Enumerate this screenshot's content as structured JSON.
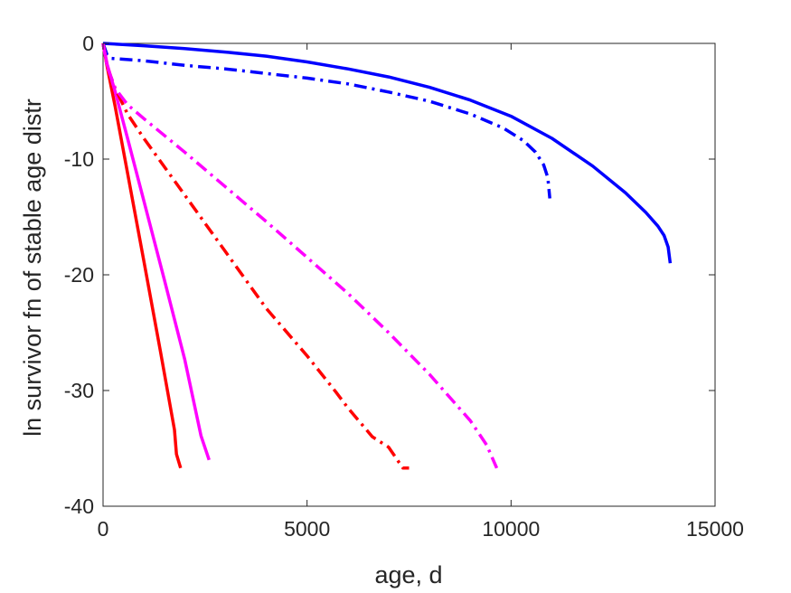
{
  "chart_data": {
    "type": "line",
    "title": "",
    "xlabel": "age, d",
    "ylabel": "ln survivor fn of stable age distr",
    "xlim": [
      0,
      15000
    ],
    "ylim": [
      -40,
      0
    ],
    "xticks": [
      0,
      5000,
      10000,
      15000
    ],
    "yticks": [
      0,
      -10,
      -20,
      -30,
      -40
    ],
    "xtick_labels": [
      "0",
      "5000",
      "10000",
      "15000"
    ],
    "ytick_labels": [
      "0",
      "-10",
      "-20",
      "-30",
      "-40"
    ],
    "grid": false,
    "legend": "none",
    "series": [
      {
        "color": "#0000ff",
        "style": "solid",
        "x": [
          0,
          1000,
          2000,
          3000,
          4000,
          5000,
          6000,
          7000,
          8000,
          9000,
          10000,
          11000,
          12000,
          12800,
          13300,
          13600,
          13750,
          13850,
          13900
        ],
        "y": [
          0,
          -0.2,
          -0.45,
          -0.75,
          -1.1,
          -1.6,
          -2.2,
          -2.9,
          -3.8,
          -4.9,
          -6.3,
          -8.2,
          -10.6,
          -12.9,
          -14.6,
          -15.8,
          -16.6,
          -17.6,
          -19.0
        ]
      },
      {
        "color": "#0000ff",
        "style": "dashdot",
        "x": [
          0,
          100,
          200,
          1000,
          2000,
          3000,
          4000,
          5000,
          6000,
          7000,
          8000,
          9000,
          9800,
          10300,
          10600,
          10800,
          10900,
          10950
        ],
        "y": [
          0,
          -1.0,
          -1.3,
          -1.5,
          -1.9,
          -2.2,
          -2.6,
          -3.0,
          -3.5,
          -4.2,
          -5.0,
          -6.1,
          -7.3,
          -8.4,
          -9.4,
          -10.5,
          -11.6,
          -13.4
        ]
      },
      {
        "color": "#ff0000",
        "style": "solid",
        "x": [
          0,
          100,
          300,
          600,
          1000,
          1400,
          1750,
          1800,
          1900
        ],
        "y": [
          0,
          -2.0,
          -5.5,
          -11.2,
          -18.8,
          -26.5,
          -33.4,
          -35.5,
          -36.7
        ]
      },
      {
        "color": "#ff00ff",
        "style": "solid",
        "x": [
          0,
          100,
          300,
          600,
          1000,
          1500,
          2000,
          2400,
          2600
        ],
        "y": [
          0,
          -1.8,
          -4.2,
          -8.2,
          -13.6,
          -20.4,
          -27.3,
          -33.9,
          -36.0
        ]
      },
      {
        "color": "#ff0000",
        "style": "dashdot",
        "x": [
          0,
          100,
          300,
          600,
          1000,
          2000,
          3000,
          4000,
          5000,
          5700,
          6000,
          6600,
          7000,
          7350,
          7500
        ],
        "y": [
          0,
          -2.0,
          -3.9,
          -6.1,
          -8.2,
          -13.1,
          -18.0,
          -22.9,
          -27.0,
          -30.1,
          -31.5,
          -34.0,
          -34.9,
          -36.7,
          -36.7
        ]
      },
      {
        "color": "#ff00ff",
        "style": "dashdot",
        "x": [
          0,
          100,
          300,
          600,
          1000,
          2000,
          3000,
          4000,
          5000,
          6000,
          7000,
          8000,
          9000,
          9400,
          9650
        ],
        "y": [
          0,
          -2.0,
          -3.9,
          -5.3,
          -6.5,
          -9.4,
          -12.4,
          -15.4,
          -18.5,
          -21.6,
          -25.0,
          -28.6,
          -32.6,
          -34.7,
          -36.7
        ]
      }
    ]
  }
}
